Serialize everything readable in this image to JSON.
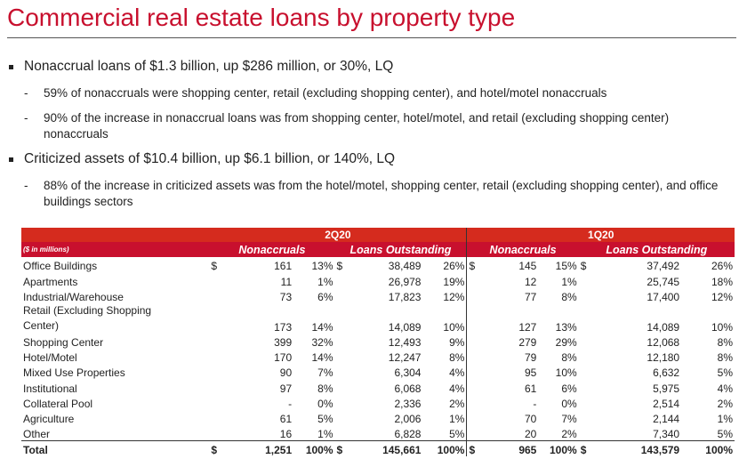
{
  "header": {
    "title": "Commercial real estate loans by property type"
  },
  "bullets": [
    {
      "text": "Nonaccrual loans of $1.3 billion, up $286 million, or 30%, LQ",
      "sub": [
        "59% of nonaccruals were shopping center, retail (excluding shopping center), and hotel/motel nonaccruals",
        "90% of the increase in nonaccrual loans was from shopping center, hotel/motel, and retail (excluding shopping center) nonaccruals"
      ]
    },
    {
      "text": "Criticized assets of $10.4 billion, up $6.1 billion, or 140%, LQ",
      "sub": [
        "88% of the increase in criticized assets was from the hotel/motel, shopping center, retail (excluding shopping center), and office buildings sectors"
      ]
    }
  ],
  "table": {
    "units": "($ in millions)",
    "periods": [
      "2Q20",
      "1Q20"
    ],
    "columns": [
      "Nonaccruals",
      "Loans Outstanding"
    ],
    "currency": "$",
    "rows": [
      {
        "label": "Office Buildings",
        "dollar": true,
        "values": [
          [
            "161",
            "13%",
            "38,489",
            "26%"
          ],
          [
            "145",
            "15%",
            "37,492",
            "26%"
          ]
        ]
      },
      {
        "label": "Apartments",
        "values": [
          [
            "11",
            "1%",
            "26,978",
            "19%"
          ],
          [
            "12",
            "1%",
            "25,745",
            "18%"
          ]
        ]
      },
      {
        "label": "Industrial/Warehouse",
        "values": [
          [
            "73",
            "6%",
            "17,823",
            "12%"
          ],
          [
            "77",
            "8%",
            "17,400",
            "12%"
          ]
        ]
      },
      {
        "label": "Retail (Excluding Shopping Center)",
        "values": [
          [
            "173",
            "14%",
            "14,089",
            "10%"
          ],
          [
            "127",
            "13%",
            "14,089",
            "10%"
          ]
        ]
      },
      {
        "label": "Shopping Center",
        "values": [
          [
            "399",
            "32%",
            "12,493",
            "9%"
          ],
          [
            "279",
            "29%",
            "12,068",
            "8%"
          ]
        ]
      },
      {
        "label": "Hotel/Motel",
        "values": [
          [
            "170",
            "14%",
            "12,247",
            "8%"
          ],
          [
            "79",
            "8%",
            "12,180",
            "8%"
          ]
        ]
      },
      {
        "label": "Mixed Use Properties",
        "values": [
          [
            "90",
            "7%",
            "6,304",
            "4%"
          ],
          [
            "95",
            "10%",
            "6,632",
            "5%"
          ]
        ]
      },
      {
        "label": "Institutional",
        "values": [
          [
            "97",
            "8%",
            "6,068",
            "4%"
          ],
          [
            "61",
            "6%",
            "5,975",
            "4%"
          ]
        ]
      },
      {
        "label": "Collateral Pool",
        "values": [
          [
            "-",
            "0%",
            "2,336",
            "2%"
          ],
          [
            "-",
            "0%",
            "2,514",
            "2%"
          ]
        ]
      },
      {
        "label": "Agriculture",
        "values": [
          [
            "61",
            "5%",
            "2,006",
            "1%"
          ],
          [
            "70",
            "7%",
            "2,144",
            "1%"
          ]
        ]
      },
      {
        "label": "Other",
        "values": [
          [
            "16",
            "1%",
            "6,828",
            "5%"
          ],
          [
            "20",
            "2%",
            "7,340",
            "5%"
          ]
        ]
      },
      {
        "label": "Total",
        "dollar": true,
        "total": true,
        "values": [
          [
            "1,251",
            "100%",
            "145,661",
            "100%"
          ],
          [
            "965",
            "100%",
            "143,579",
            "100%"
          ]
        ]
      }
    ]
  }
}
